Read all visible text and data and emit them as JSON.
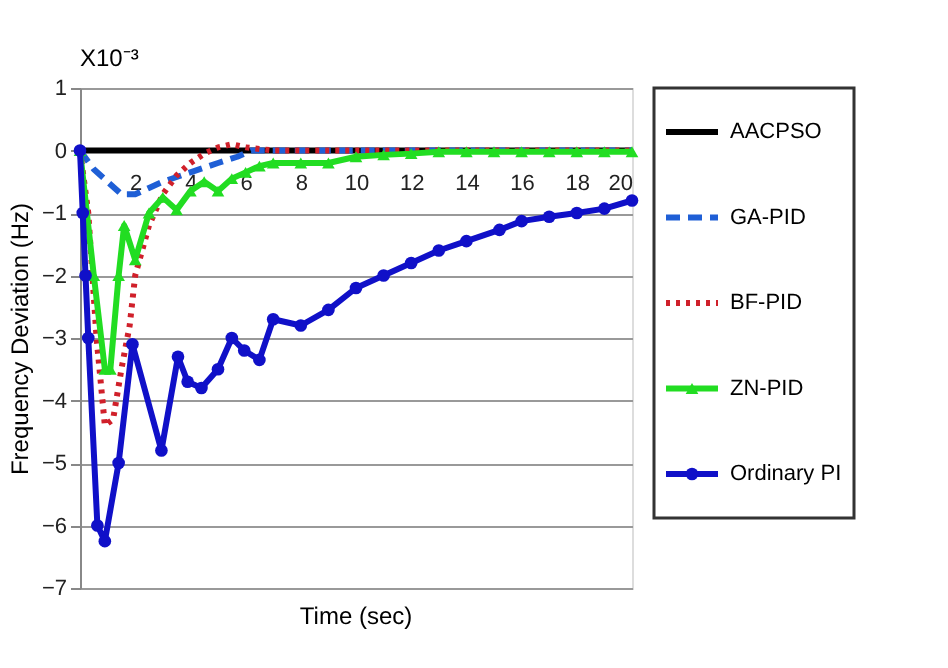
{
  "chart_data": {
    "type": "line",
    "xlabel": "Time (sec)",
    "ylabel": "Frequency Deviation (Hz)",
    "annotations": [
      "X10⁻³"
    ],
    "xlim": [
      0,
      20
    ],
    "xticks": [
      2,
      4,
      6,
      8,
      10,
      12,
      14,
      16,
      18,
      20
    ],
    "ylim": [
      -7,
      1
    ],
    "yticks": [
      1,
      0,
      -1,
      -2,
      -3,
      -4,
      -5,
      -6,
      -7
    ],
    "grid": "y",
    "legend": "right",
    "series": [
      {
        "name": "AACPSO",
        "color": "#000000",
        "line_style": "solid",
        "marker": "none",
        "x": [
          0,
          20
        ],
        "values": [
          0,
          0
        ]
      },
      {
        "name": "GA-PID",
        "color": "#1f5fd6",
        "line_style": "dashed",
        "marker": "none",
        "x": [
          0,
          0.5,
          1.5,
          2,
          2.5,
          3,
          4,
          5,
          5.7,
          6.2,
          20
        ],
        "values": [
          0,
          -0.3,
          -0.7,
          -0.7,
          -0.6,
          -0.5,
          -0.35,
          -0.2,
          -0.1,
          0,
          0
        ]
      },
      {
        "name": "BF-PID",
        "color": "#d0202a",
        "line_style": "dotted",
        "marker": "none",
        "x": [
          0,
          0.3,
          0.6,
          0.9,
          1.2,
          1.5,
          1.8,
          2,
          2.5,
          3,
          3.5,
          4,
          4.5,
          5,
          5.5,
          6,
          7,
          20
        ],
        "values": [
          0,
          -1,
          -3,
          -4.4,
          -4.3,
          -3.5,
          -2.8,
          -2,
          -1.2,
          -0.7,
          -0.4,
          -0.2,
          -0.05,
          0.05,
          0.1,
          0.05,
          0,
          0
        ]
      },
      {
        "name": "ZN-PID",
        "color": "#22dd22",
        "line_style": "solid",
        "marker": "triangle",
        "x": [
          0,
          0.5,
          0.9,
          1.1,
          1.4,
          1.6,
          2,
          2.5,
          3,
          3.5,
          4,
          4.5,
          5,
          5.5,
          6,
          6.5,
          7,
          8,
          9,
          10,
          11,
          12,
          13,
          14,
          15,
          16,
          17,
          18,
          19,
          20
        ],
        "values": [
          0,
          -2,
          -3.5,
          -3.5,
          -2,
          -1.2,
          -1.75,
          -1,
          -0.75,
          -0.95,
          -0.65,
          -0.5,
          -0.65,
          -0.45,
          -0.35,
          -0.25,
          -0.2,
          -0.2,
          -0.2,
          -0.1,
          -0.07,
          -0.05,
          -0.02,
          -0.02,
          -0.02,
          -0.02,
          -0.02,
          -0.02,
          -0.02,
          -0.02
        ]
      },
      {
        "name": "Ordinary PI",
        "color": "#1010c8",
        "line_style": "solid",
        "marker": "circle",
        "x": [
          0,
          0.1,
          0.2,
          0.3,
          0.63,
          0.9,
          1.4,
          1.9,
          2.95,
          3.55,
          3.9,
          4.4,
          5,
          5.5,
          5.95,
          6.5,
          7,
          8,
          9,
          10,
          11,
          12,
          13,
          14,
          15.2,
          16,
          17,
          18,
          19,
          20
        ],
        "values": [
          0,
          -1,
          -2,
          -3,
          -6,
          -6.25,
          -5,
          -3.1,
          -4.8,
          -3.3,
          -3.7,
          -3.8,
          -3.5,
          -3,
          -3.2,
          -3.35,
          -2.7,
          -2.8,
          -2.55,
          -2.2,
          -2,
          -1.8,
          -1.6,
          -1.45,
          -1.27,
          -1.13,
          -1.06,
          -1,
          -0.93,
          -0.8
        ]
      }
    ]
  }
}
